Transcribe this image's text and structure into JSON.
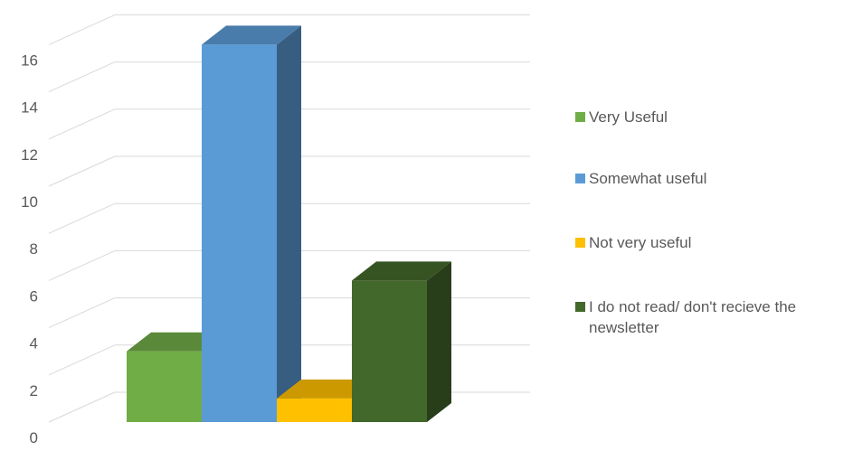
{
  "chart_data": {
    "type": "bar",
    "variant": "3d-clustered-column",
    "title": "",
    "xlabel": "",
    "ylabel": "",
    "ylim": [
      0,
      16
    ],
    "yticks": [
      0,
      2,
      4,
      6,
      8,
      10,
      12,
      14,
      16
    ],
    "grid": true,
    "legend_position": "right",
    "series": [
      {
        "name": "Very Useful",
        "values": [
          3
        ],
        "color": "#70AD47"
      },
      {
        "name": "Somewhat useful",
        "values": [
          16
        ],
        "color": "#5B9BD5"
      },
      {
        "name": "Not very useful",
        "values": [
          1
        ],
        "color": "#FFC000"
      },
      {
        "name": "I do not read/ don't recieve the newsletter",
        "values": [
          6
        ],
        "color": "#43682B"
      }
    ]
  }
}
